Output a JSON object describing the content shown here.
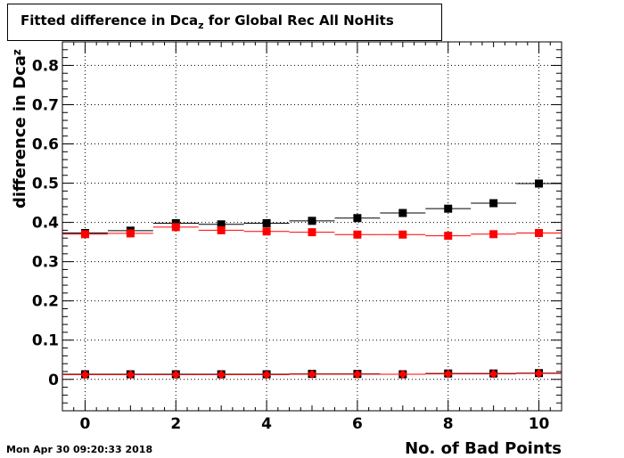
{
  "title": {
    "prefix": "Fitted difference in Dca",
    "subscript": "z",
    "suffix": " for Global Rec All NoHits"
  },
  "timestamp": "Mon Apr 30 09:20:33 2018",
  "chart_data": {
    "type": "scatter",
    "xlabel": "No. of Bad Points",
    "ylabel": "difference in Dca",
    "ylabel_subscript": "z",
    "xlim": [
      -0.5,
      10.5
    ],
    "ylim": [
      -0.08,
      0.86
    ],
    "x_ticks": [
      0,
      2,
      4,
      6,
      8,
      10
    ],
    "y_ticks": [
      0,
      0.1,
      0.2,
      0.3,
      0.4,
      0.5,
      0.6,
      0.7,
      0.8
    ],
    "grid": true,
    "series": [
      {
        "color": "#000000",
        "marker": "square",
        "x": [
          0,
          1,
          2,
          3,
          4,
          5,
          6,
          7,
          8,
          9,
          10
        ],
        "values": [
          0.373,
          0.379,
          0.398,
          0.395,
          0.398,
          0.404,
          0.411,
          0.424,
          0.435,
          0.449,
          0.499
        ]
      },
      {
        "color": "#ff0000",
        "marker": "square",
        "x": [
          0,
          1,
          2,
          3,
          4,
          5,
          6,
          7,
          8,
          9,
          10
        ],
        "values": [
          0.37,
          0.372,
          0.388,
          0.38,
          0.377,
          0.375,
          0.369,
          0.369,
          0.366,
          0.37,
          0.373
        ]
      },
      {
        "color": "#000000",
        "marker": "square",
        "x": [
          0,
          1,
          2,
          3,
          4,
          5,
          6,
          7,
          8,
          9,
          10
        ],
        "values": [
          0.013,
          0.013,
          0.013,
          0.013,
          0.013,
          0.014,
          0.014,
          0.013,
          0.015,
          0.015,
          0.016
        ]
      },
      {
        "color": "#ff0000",
        "marker": "diamond",
        "x": [
          0,
          1,
          2,
          3,
          4,
          5,
          6,
          7,
          8,
          9,
          10
        ],
        "values": [
          0.012,
          0.012,
          0.012,
          0.012,
          0.012,
          0.013,
          0.013,
          0.013,
          0.014,
          0.014,
          0.015
        ]
      }
    ]
  }
}
